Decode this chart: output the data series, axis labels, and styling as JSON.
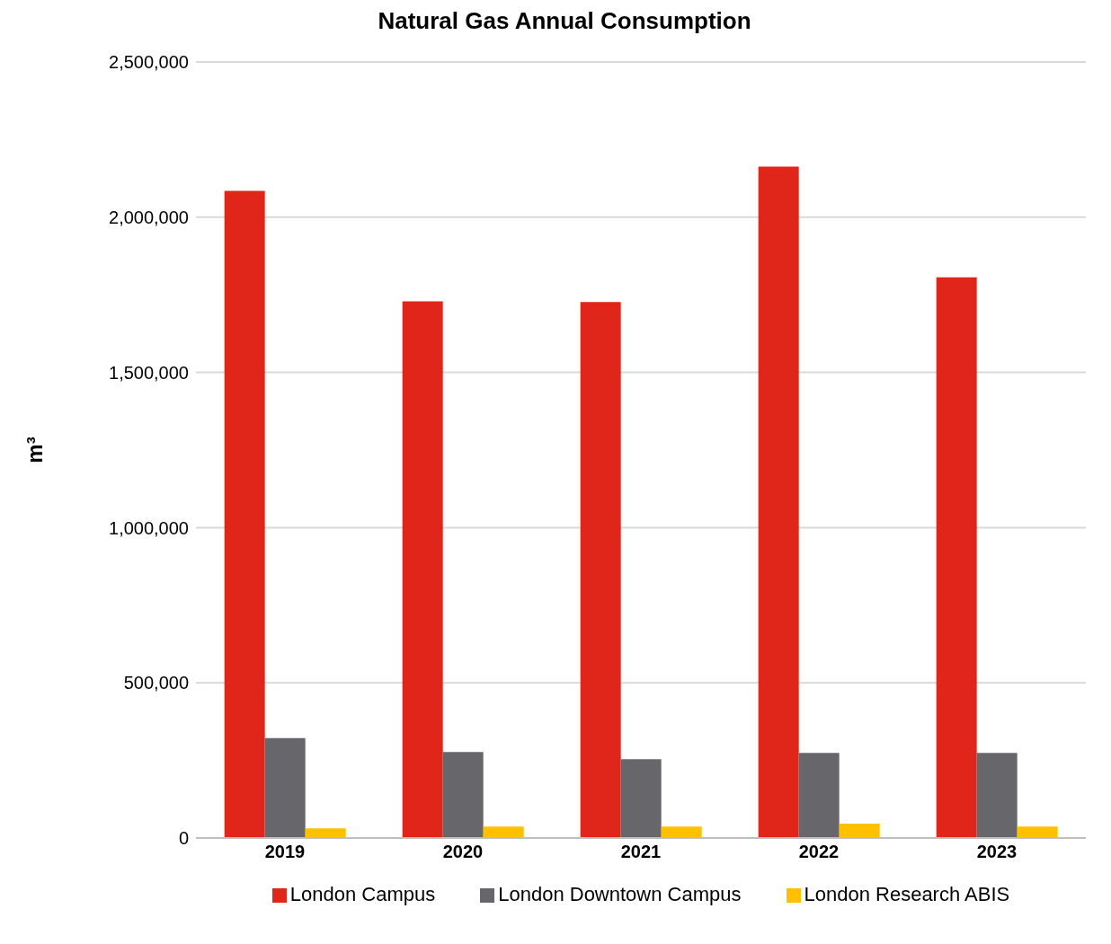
{
  "chart_data": {
    "type": "bar",
    "title": "Natural Gas Annual Consumption",
    "ylabel": "m³",
    "categories": [
      "2019",
      "2020",
      "2021",
      "2022",
      "2023"
    ],
    "series": [
      {
        "name": "London Campus",
        "color": "#e0261b",
        "values": [
          2085000,
          1729000,
          1727000,
          2163000,
          1806000
        ]
      },
      {
        "name": "London Downtown Campus",
        "color": "#67666b",
        "values": [
          322000,
          277000,
          254000,
          274000,
          274000
        ]
      },
      {
        "name": "London Research ABIS",
        "color": "#ffc000",
        "values": [
          31000,
          37000,
          37000,
          46000,
          37000
        ]
      }
    ],
    "ylim": [
      0,
      2500000
    ],
    "yticks": [
      0,
      {
        "value": 500000,
        "label": "500,000"
      },
      {
        "value": 1000000,
        "label": "1,000,000"
      },
      {
        "value": 1500000,
        "label": "1,500,000"
      },
      {
        "value": 2000000,
        "label": "2,000,000"
      },
      {
        "value": 2500000,
        "label": "2,500,000"
      }
    ],
    "grid": "y",
    "legend": "bottom"
  }
}
